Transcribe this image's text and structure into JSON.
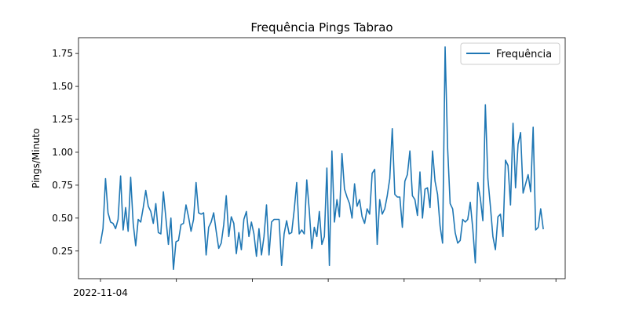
{
  "chart_data": {
    "type": "line",
    "title": "Frequência Pings Tabrao",
    "xlabel": "",
    "ylabel": "Pings/Minuto",
    "x_tick_labels": [
      "2022-11-04",
      "",
      "",
      "",
      "",
      "",
      ""
    ],
    "y_ticks": [
      0.25,
      0.5,
      0.75,
      1.0,
      1.25,
      1.5,
      1.75
    ],
    "y_tick_labels": [
      "0.25",
      "0.50",
      "0.75",
      "1.00",
      "1.25",
      "1.50",
      "1.75"
    ],
    "ylim": [
      0.04,
      1.87
    ],
    "legend_position": "top-right",
    "grid": false,
    "series": [
      {
        "name": "Frequência",
        "color": "#1f77b4",
        "values": [
          0.31,
          0.42,
          0.8,
          0.54,
          0.47,
          0.46,
          0.42,
          0.49,
          0.82,
          0.41,
          0.58,
          0.4,
          0.81,
          0.46,
          0.29,
          0.49,
          0.47,
          0.58,
          0.71,
          0.59,
          0.55,
          0.46,
          0.61,
          0.39,
          0.38,
          0.7,
          0.5,
          0.3,
          0.5,
          0.11,
          0.32,
          0.33,
          0.45,
          0.46,
          0.6,
          0.51,
          0.4,
          0.49,
          0.77,
          0.54,
          0.53,
          0.54,
          0.22,
          0.43,
          0.47,
          0.54,
          0.4,
          0.27,
          0.31,
          0.45,
          0.67,
          0.36,
          0.51,
          0.46,
          0.23,
          0.39,
          0.26,
          0.49,
          0.55,
          0.36,
          0.47,
          0.38,
          0.21,
          0.42,
          0.22,
          0.36,
          0.6,
          0.22,
          0.47,
          0.49,
          0.49,
          0.49,
          0.14,
          0.38,
          0.48,
          0.38,
          0.39,
          0.56,
          0.77,
          0.38,
          0.41,
          0.38,
          0.79,
          0.56,
          0.27,
          0.43,
          0.36,
          0.55,
          0.3,
          0.36,
          0.88,
          0.14,
          1.01,
          0.47,
          0.64,
          0.51,
          0.99,
          0.72,
          0.66,
          0.61,
          0.5,
          0.76,
          0.59,
          0.64,
          0.51,
          0.46,
          0.57,
          0.53,
          0.84,
          0.87,
          0.3,
          0.64,
          0.53,
          0.57,
          0.67,
          0.8,
          1.18,
          0.68,
          0.66,
          0.66,
          0.43,
          0.78,
          0.83,
          1.01,
          0.67,
          0.64,
          0.52,
          0.85,
          0.5,
          0.72,
          0.73,
          0.58,
          1.01,
          0.78,
          0.68,
          0.44,
          0.31,
          1.8,
          1.03,
          0.61,
          0.57,
          0.39,
          0.31,
          0.33,
          0.49,
          0.47,
          0.49,
          0.62,
          0.42,
          0.16,
          0.77,
          0.65,
          0.48,
          1.36,
          0.8,
          0.59,
          0.36,
          0.26,
          0.51,
          0.53,
          0.36,
          0.94,
          0.9,
          0.6,
          1.22,
          0.73,
          1.06,
          1.15,
          0.69,
          0.76,
          0.83,
          0.7,
          1.19,
          0.41,
          0.43,
          0.57,
          0.42
        ]
      }
    ]
  }
}
